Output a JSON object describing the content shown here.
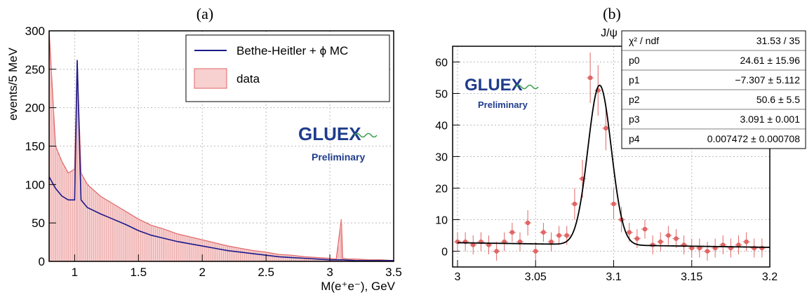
{
  "panel_labels": {
    "a": "(a)",
    "b": "(b)"
  },
  "watermark": {
    "logo_text": "GLUEX",
    "subtitle": "Preliminary"
  },
  "chart_data": [
    {
      "type": "area",
      "title": "",
      "xlabel": "M(e⁺e⁻), GeV",
      "ylabel": "events/5 MeV",
      "xlim": [
        0.8,
        3.5
      ],
      "ylim": [
        0,
        300
      ],
      "xticks": [
        "1",
        "1.5",
        "2",
        "2.5",
        "3",
        "3.5"
      ],
      "yticks": [
        "0",
        "50",
        "100",
        "150",
        "200",
        "250",
        "300"
      ],
      "grid": true,
      "legend_placement": "top-right",
      "legend": [
        "Bethe-Heitler + ϕ MC",
        "data"
      ],
      "series": [
        {
          "name": "data",
          "style": "hatched histogram",
          "x": [
            0.8,
            0.85,
            0.9,
            0.95,
            1.0,
            1.02,
            1.05,
            1.1,
            1.2,
            1.3,
            1.4,
            1.5,
            1.6,
            1.7,
            1.8,
            1.9,
            2.0,
            2.1,
            2.2,
            2.3,
            2.4,
            2.5,
            2.6,
            2.7,
            2.8,
            2.9,
            3.0,
            3.05,
            3.09,
            3.1,
            3.15,
            3.2,
            3.3,
            3.4,
            3.5
          ],
          "y": [
            300,
            150,
            130,
            115,
            120,
            260,
            115,
            100,
            85,
            75,
            65,
            55,
            47,
            42,
            36,
            32,
            28,
            24,
            20,
            17,
            14,
            12,
            9,
            8,
            6,
            5,
            4,
            3,
            55,
            4,
            3,
            3,
            2,
            2,
            1
          ]
        },
        {
          "name": "Bethe-Heitler + ϕ MC",
          "style": "line",
          "x": [
            0.8,
            0.85,
            0.9,
            0.95,
            1.0,
            1.02,
            1.05,
            1.1,
            1.2,
            1.3,
            1.4,
            1.5,
            1.6,
            1.7,
            1.8,
            1.9,
            2.0,
            2.1,
            2.2,
            2.3,
            2.4,
            2.5,
            2.6,
            2.7,
            2.8,
            2.9,
            3.0,
            3.1,
            3.2,
            3.3,
            3.4,
            3.5
          ],
          "y": [
            110,
            95,
            85,
            80,
            80,
            262,
            80,
            70,
            62,
            55,
            48,
            40,
            34,
            30,
            26,
            23,
            20,
            17,
            14,
            12,
            10,
            8,
            6,
            5,
            4,
            3,
            2,
            2,
            1,
            1,
            1,
            1
          ]
        }
      ],
      "colors": {
        "data": "#e06666",
        "mc": "#1a1a8c"
      }
    },
    {
      "type": "scatter",
      "title": "J/ψ",
      "xlabel": "",
      "ylabel": "",
      "xlim": [
        3.0,
        3.2
      ],
      "ylim": [
        -5,
        65
      ],
      "xticks": [
        "3",
        "3.05",
        "3.1",
        "3.15",
        "3.2"
      ],
      "yticks": [
        "0",
        "10",
        "20",
        "30",
        "40",
        "50",
        "60"
      ],
      "grid": true,
      "series": [
        {
          "name": "data",
          "style": "points with error bars",
          "x": [
            3.0,
            3.005,
            3.01,
            3.015,
            3.02,
            3.025,
            3.03,
            3.035,
            3.04,
            3.045,
            3.05,
            3.055,
            3.06,
            3.065,
            3.07,
            3.075,
            3.08,
            3.085,
            3.09,
            3.095,
            3.1,
            3.105,
            3.11,
            3.115,
            3.12,
            3.125,
            3.13,
            3.135,
            3.14,
            3.145,
            3.15,
            3.155,
            3.16,
            3.165,
            3.17,
            3.175,
            3.18,
            3.185,
            3.19,
            3.195
          ],
          "y": [
            3,
            3,
            2,
            3,
            2,
            0,
            3,
            6,
            3,
            9,
            0,
            6,
            3,
            5,
            5,
            15,
            23,
            55,
            51,
            39,
            15,
            10,
            6,
            4,
            7,
            2,
            3,
            5,
            4,
            2,
            1,
            1,
            0,
            1,
            2,
            1,
            2,
            3,
            1,
            1
          ],
          "err": [
            3,
            3,
            3,
            3,
            3,
            3,
            3,
            3,
            3,
            4,
            3,
            3,
            3,
            3,
            3,
            5,
            6,
            8,
            8,
            7,
            5,
            4,
            3,
            3,
            3,
            3,
            3,
            3,
            3,
            3,
            3,
            3,
            3,
            3,
            3,
            3,
            3,
            3,
            3,
            3
          ]
        },
        {
          "name": "fit",
          "style": "line",
          "model": "gaussian+linear",
          "params": {
            "p0": 24.61,
            "p1": -7.307,
            "p2": 50.6,
            "p3": 3.091,
            "p4": 0.007472
          }
        }
      ],
      "colors": {
        "points": "#e06666",
        "fit": "#000000"
      },
      "stats_box": [
        [
          "χ² / ndf",
          "31.53 / 35"
        ],
        [
          "p0",
          "24.61 ± 15.96"
        ],
        [
          "p1",
          "−7.307 ± 5.112"
        ],
        [
          "p2",
          "50.6 ± 5.5"
        ],
        [
          "p3",
          "3.091 ± 0.001"
        ],
        [
          "p4",
          "0.007472 ± 0.000708"
        ]
      ]
    }
  ]
}
